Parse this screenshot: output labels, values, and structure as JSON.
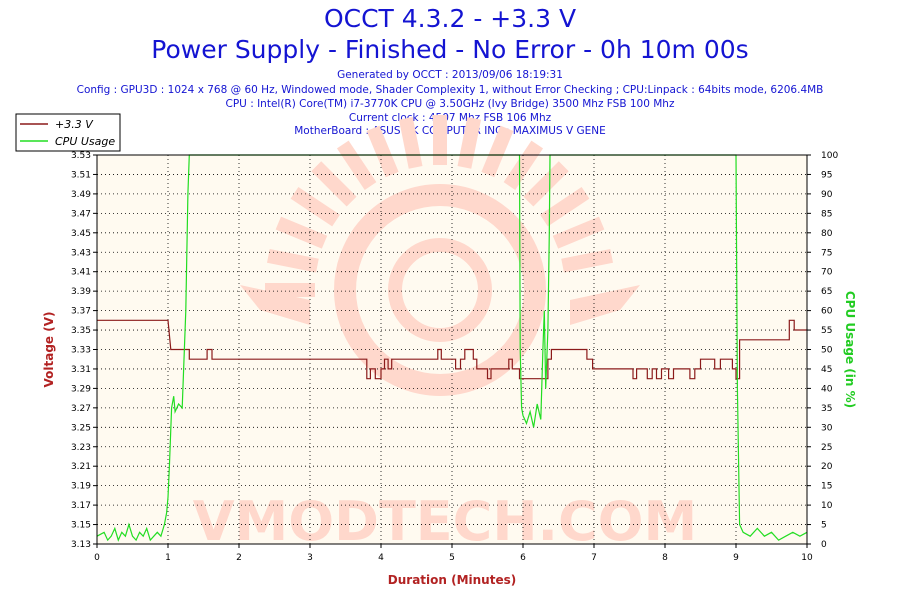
{
  "header": {
    "title": "OCCT 4.3.2 - +3.3 V",
    "subtitle": "Power Supply - Finished - No Error - 0h 10m 00s",
    "generated": "Generated by OCCT : 2013/09/06 18:19:31",
    "config": "Config : GPU3D : 1024 x 768 @ 60 Hz, Windowed mode, Shader Complexity 1, without Error Checking ; CPU:Linpack : 64bits mode, 6206.4MB",
    "cpu": "CPU : Intel(R) Core(TM) i7-3770K CPU @ 3.50GHz (Ivy Bridge) 3500 Mhz FSB 100 Mhz",
    "clock": "Current clock : 4507 Mhz FSB 106 Mhz",
    "motherboard": "MotherBoard : ASUSTeK COMPUTER INC.: MAXIMUS V GENE"
  },
  "watermark": {
    "text": "VMODTECH.COM"
  },
  "colors": {
    "title": "#1414d2",
    "voltage": "#8b1a1a",
    "cpu": "#22dd22",
    "plot_bg": "#fffaf0",
    "watermark": "#ffd8cc"
  },
  "chart_data": {
    "type": "line",
    "xlabel": "Duration (Minutes)",
    "ylabel_left": "Voltage (V)",
    "ylabel_right": "CPU Usage (in %)",
    "xlim": [
      0,
      10
    ],
    "ylim_left": [
      3.13,
      3.53
    ],
    "ylim_right": [
      0,
      100
    ],
    "x_ticks": [
      "0",
      "1",
      "2",
      "3",
      "4",
      "5",
      "6",
      "7",
      "8",
      "9",
      "10"
    ],
    "y_left_ticks": [
      "3.13",
      "3.15",
      "3.17",
      "3.19",
      "3.21",
      "3.23",
      "3.25",
      "3.27",
      "3.29",
      "3.31",
      "3.33",
      "3.35",
      "3.37",
      "3.39",
      "3.41",
      "3.43",
      "3.45",
      "3.47",
      "3.49",
      "3.51",
      "3.53"
    ],
    "y_right_ticks": [
      "0",
      "5",
      "10",
      "15",
      "20",
      "25",
      "30",
      "35",
      "40",
      "45",
      "50",
      "55",
      "60",
      "65",
      "70",
      "75",
      "80",
      "85",
      "90",
      "95",
      "100"
    ],
    "grid": "dotted",
    "legend_position": "top-left",
    "series": [
      {
        "name": "+3.3 V",
        "axis": "left",
        "x": [
          0,
          1.0,
          1.04,
          1.04,
          1.3,
          1.3,
          1.55,
          1.55,
          1.62,
          1.62,
          3.8,
          3.8,
          3.85,
          3.85,
          3.92,
          3.92,
          4.0,
          4.0,
          4.05,
          4.05,
          4.1,
          4.1,
          4.15,
          4.15,
          4.8,
          4.8,
          4.85,
          4.85,
          5.05,
          5.05,
          5.12,
          5.12,
          5.18,
          5.18,
          5.3,
          5.3,
          5.35,
          5.35,
          5.5,
          5.5,
          5.55,
          5.55,
          5.8,
          5.8,
          5.85,
          5.85,
          5.95,
          5.95,
          6.35,
          6.35,
          6.4,
          6.4,
          6.9,
          6.9,
          6.98,
          6.98,
          7.55,
          7.55,
          7.6,
          7.6,
          7.75,
          7.75,
          7.82,
          7.82,
          7.88,
          7.88,
          7.95,
          7.95,
          8.05,
          8.05,
          8.12,
          8.12,
          8.35,
          8.35,
          8.42,
          8.42,
          8.5,
          8.5,
          8.7,
          8.7,
          8.78,
          8.78,
          8.95,
          8.95,
          9.0,
          9.0,
          9.05,
          9.05,
          9.75,
          9.75,
          9.82,
          9.82,
          10.0
        ],
        "y": [
          3.36,
          3.36,
          3.33,
          3.33,
          3.33,
          3.32,
          3.32,
          3.33,
          3.33,
          3.32,
          3.32,
          3.3,
          3.3,
          3.31,
          3.31,
          3.3,
          3.3,
          3.31,
          3.31,
          3.32,
          3.32,
          3.31,
          3.31,
          3.32,
          3.32,
          3.33,
          3.33,
          3.32,
          3.32,
          3.31,
          3.31,
          3.32,
          3.32,
          3.33,
          3.33,
          3.32,
          3.32,
          3.31,
          3.31,
          3.3,
          3.3,
          3.31,
          3.31,
          3.32,
          3.32,
          3.31,
          3.31,
          3.3,
          3.3,
          3.32,
          3.32,
          3.33,
          3.33,
          3.32,
          3.32,
          3.31,
          3.31,
          3.3,
          3.3,
          3.31,
          3.31,
          3.3,
          3.3,
          3.31,
          3.31,
          3.3,
          3.3,
          3.31,
          3.31,
          3.3,
          3.3,
          3.31,
          3.31,
          3.3,
          3.3,
          3.31,
          3.31,
          3.32,
          3.32,
          3.31,
          3.31,
          3.32,
          3.32,
          3.31,
          3.31,
          3.3,
          3.3,
          3.34,
          3.34,
          3.36,
          3.36,
          3.35,
          3.35
        ]
      },
      {
        "name": "CPU Usage",
        "axis": "right",
        "x": [
          0,
          0.1,
          0.15,
          0.2,
          0.25,
          0.3,
          0.35,
          0.4,
          0.45,
          0.5,
          0.55,
          0.6,
          0.65,
          0.7,
          0.75,
          0.8,
          0.85,
          0.9,
          0.95,
          0.98,
          1.0,
          1.02,
          1.05,
          1.08,
          1.1,
          1.15,
          1.2,
          1.25,
          1.28,
          1.3,
          5.95,
          5.96,
          5.98,
          6.0,
          6.05,
          6.1,
          6.15,
          6.2,
          6.25,
          6.28,
          6.3,
          6.32,
          6.35,
          6.37,
          6.38,
          9.0,
          9.02,
          9.05,
          9.1,
          9.2,
          9.3,
          9.4,
          9.5,
          9.6,
          9.7,
          9.8,
          9.9,
          10.0
        ],
        "y": [
          2,
          3,
          1,
          2,
          4,
          1,
          3,
          2,
          5,
          2,
          1,
          3,
          2,
          4,
          1,
          2,
          3,
          2,
          5,
          8,
          12,
          20,
          35,
          38,
          34,
          36,
          35,
          60,
          90,
          100,
          100,
          50,
          35,
          33,
          31,
          34,
          30,
          36,
          32,
          50,
          60,
          40,
          55,
          80,
          100,
          100,
          40,
          5,
          3,
          2,
          4,
          2,
          3,
          1,
          2,
          3,
          2,
          3
        ]
      }
    ]
  }
}
